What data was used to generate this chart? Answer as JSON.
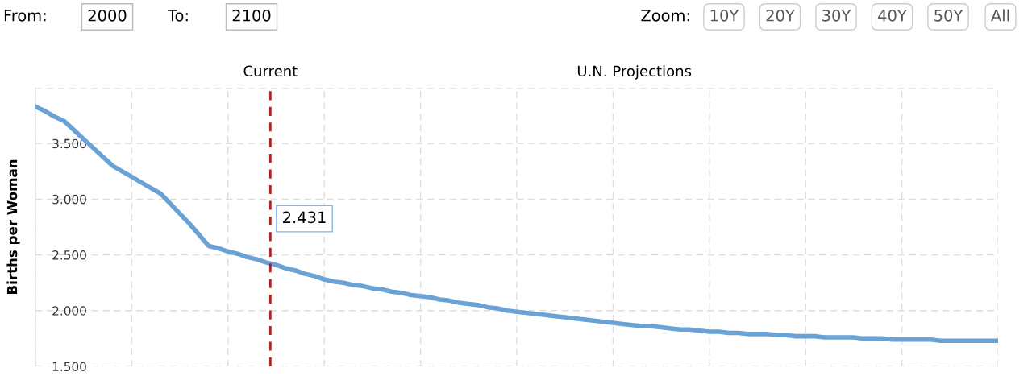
{
  "chart_data": {
    "type": "line",
    "ylabel": "Births per Woman",
    "categories": [
      null,
      null,
      null,
      null,
      null,
      null,
      null,
      null,
      null,
      null,
      null,
      null,
      null,
      null,
      null,
      null,
      null,
      null,
      null,
      null,
      null,
      null,
      null,
      null,
      null,
      null,
      null,
      null,
      null,
      null,
      null,
      null,
      null,
      null,
      null,
      null,
      null,
      null,
      null,
      null,
      null,
      null,
      null,
      null,
      null,
      null,
      null,
      null,
      null,
      null,
      null,
      null,
      null,
      null,
      null,
      null,
      null,
      null,
      null,
      null,
      null,
      null,
      null,
      null,
      null,
      null,
      null,
      null,
      null,
      null,
      null,
      null,
      null,
      null,
      null,
      null,
      null,
      null,
      null,
      null,
      null,
      null,
      null,
      null,
      null,
      null,
      null,
      null,
      null,
      null,
      null,
      null,
      null,
      null,
      null,
      null,
      null,
      null,
      null,
      null,
      null
    ],
    "series": [
      {
        "color": "#6aa2d6",
        "values": [
          3.83,
          3.79,
          3.74,
          3.7,
          3.62,
          3.54,
          3.46,
          3.38,
          3.3,
          3.25,
          3.2,
          3.15,
          3.1,
          3.05,
          2.96,
          2.87,
          2.78,
          2.68,
          2.58,
          2.56,
          2.53,
          2.51,
          2.48,
          2.46,
          2.431,
          2.41,
          2.38,
          2.36,
          2.33,
          2.31,
          2.28,
          2.26,
          2.25,
          2.23,
          2.22,
          2.2,
          2.19,
          2.17,
          2.16,
          2.14,
          2.13,
          2.12,
          2.1,
          2.09,
          2.07,
          2.06,
          2.05,
          2.03,
          2.02,
          2.0,
          1.99,
          1.98,
          1.97,
          1.96,
          1.95,
          1.94,
          1.93,
          1.92,
          1.91,
          1.9,
          1.89,
          1.88,
          1.87,
          1.86,
          1.86,
          1.85,
          1.84,
          1.83,
          1.83,
          1.82,
          1.81,
          1.81,
          1.8,
          1.8,
          1.79,
          1.79,
          1.79,
          1.78,
          1.78,
          1.77,
          1.77,
          1.77,
          1.76,
          1.76,
          1.76,
          1.76,
          1.75,
          1.75,
          1.75,
          1.74,
          1.74,
          1.74,
          1.74,
          1.74,
          1.73,
          1.73,
          1.73,
          1.73,
          1.73,
          1.73,
          1.73
        ]
      }
    ],
    "ylim": [
      1.5,
      4.0
    ],
    "yticks": [
      {
        "value": 1.5,
        "label": "1.500"
      },
      {
        "value": 2.0,
        "label": "2.000"
      },
      {
        "value": 2.5,
        "label": "2.500"
      },
      {
        "value": 3.0,
        "label": "3.000"
      },
      {
        "value": 3.5,
        "label": "3.500"
      },
      {
        "value": 4.0,
        "label": null
      }
    ],
    "grid": true,
    "marker": "none",
    "line_style": "solid",
    "annotations": [
      "U.N. Projections",
      "From:",
      "2000",
      "To:",
      "2100",
      "Zoom:",
      "10Y",
      "20Y",
      "30Y",
      "40Y",
      "50Y",
      "All",
      "Current",
      "2.431"
    ]
  }
}
